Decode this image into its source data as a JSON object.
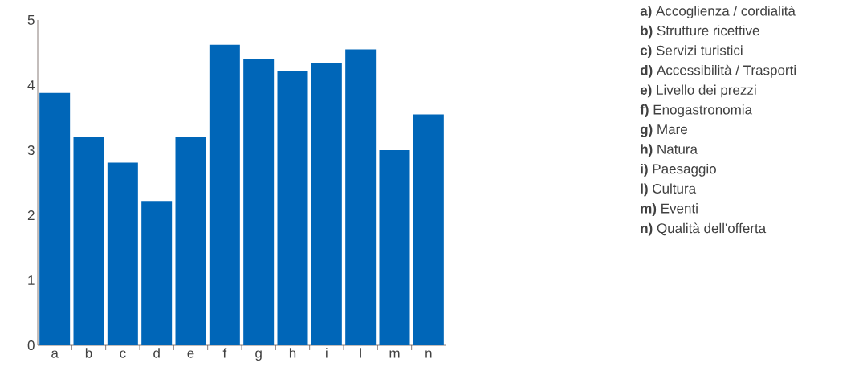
{
  "chart_data": {
    "type": "bar",
    "categories": [
      "a",
      "b",
      "c",
      "d",
      "e",
      "f",
      "g",
      "h",
      "i",
      "l",
      "m",
      "n"
    ],
    "values": [
      3.88,
      3.21,
      2.81,
      2.22,
      3.21,
      4.62,
      4.4,
      4.22,
      4.34,
      4.55,
      3.0,
      3.55
    ],
    "color": "#0066b8",
    "ylim": [
      0,
      5
    ],
    "yticks": [
      0,
      1,
      2,
      3,
      4,
      5
    ],
    "grid": false,
    "annotations": [
      "**a)** Accoglienza / cordialità",
      "**b)** Strutture ricettive",
      "**c)** Servizi turistici",
      "**d)** Accessibilità / Trasporti",
      "**e)** Livello dei prezzi",
      "**f)** Enogastronomia",
      "**g)** Mare",
      "**h)** Natura",
      "**i)** Paesaggio",
      "**l)** Cultura",
      "**m)** Eventi",
      "**n)** Qualità dell'offerta"
    ]
  }
}
